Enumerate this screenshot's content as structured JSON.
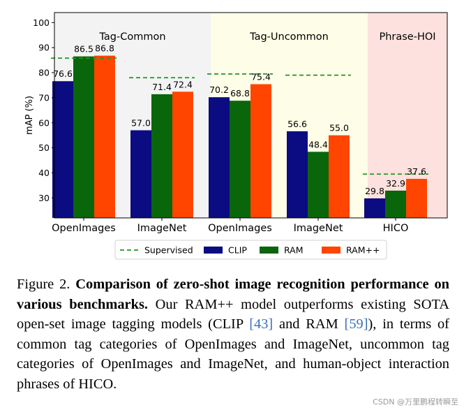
{
  "chart_data": {
    "type": "bar",
    "ylabel": "mAP (%)",
    "ylim": [
      22,
      104
    ],
    "yticks": [
      30,
      40,
      50,
      60,
      70,
      80,
      90,
      100
    ],
    "groups": [
      {
        "name": "Tag-Common",
        "background": "#f3f3f3",
        "categories": [
          "OpenImages",
          "ImageNet"
        ]
      },
      {
        "name": "Tag-Uncommon",
        "background": "#fefde7",
        "categories": [
          "OpenImages",
          "ImageNet"
        ]
      },
      {
        "name": "Phrase-HOI",
        "background": "#fde1de",
        "categories": [
          "HICO"
        ]
      }
    ],
    "categories": [
      "OpenImages",
      "ImageNet",
      "OpenImages",
      "ImageNet",
      "HICO"
    ],
    "series": [
      {
        "name": "CLIP",
        "color": "#0b0b82",
        "values": [
          76.6,
          57.0,
          70.2,
          56.6,
          29.8
        ],
        "labels": [
          "76.6",
          "57.0",
          "70.2",
          "56.6",
          "29.8"
        ]
      },
      {
        "name": "RAM",
        "color": "#0a660a",
        "values": [
          86.5,
          71.4,
          68.8,
          48.4,
          32.9
        ],
        "labels": [
          "86.5",
          "71.4",
          "68.8",
          "48.4",
          "32.9"
        ]
      },
      {
        "name": "RAM++",
        "color": "#ff4500",
        "values": [
          86.8,
          72.4,
          75.4,
          55.0,
          37.6
        ],
        "labels": [
          "86.8",
          "72.4",
          "75.4",
          "55.0",
          "37.6"
        ]
      }
    ],
    "supervised": {
      "name": "Supervised",
      "color": "#239423",
      "values": [
        85.8,
        78.0,
        79.5,
        79.0,
        39.5
      ]
    },
    "legend": [
      "Supervised",
      "CLIP",
      "RAM",
      "RAM++"
    ],
    "legend_position": "bottom"
  },
  "caption": {
    "prefix": "Figure 2.",
    "bold": "Comparison of zero-shot image recognition performance on various benchmarks.",
    "text1": "Our RAM++ model outperforms existing SOTA open-set image tagging models (CLIP",
    "ref1": "[43]",
    "text2": "and RAM",
    "ref2": "[59]",
    "text3": "), in terms of common tag categories of OpenImages and ImageNet, uncommon tag categories of OpenImages and ImageNet, and human-object interaction phrases of HICO."
  },
  "watermark": "CSDN @万里鹏程转瞬至"
}
